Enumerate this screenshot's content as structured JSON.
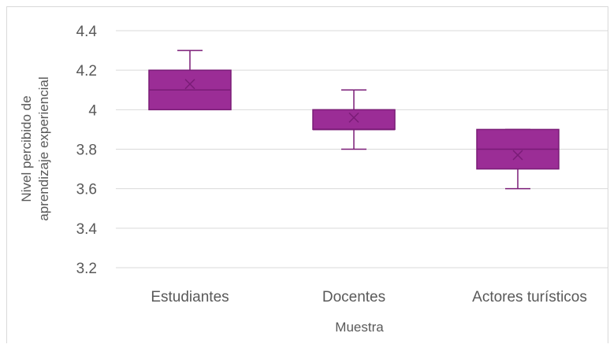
{
  "chart_data": {
    "type": "box",
    "categories": [
      "Estudiantes",
      "Docentes",
      "Actores turísticos"
    ],
    "boxes": [
      {
        "category": "Estudiantes",
        "min": 4.0,
        "q1": 4.0,
        "median": 4.1,
        "q3": 4.2,
        "max": 4.3,
        "mean": 4.13
      },
      {
        "category": "Docentes",
        "min": 3.8,
        "q1": 3.9,
        "median": 3.9,
        "q3": 4.0,
        "max": 4.1,
        "mean": 3.96
      },
      {
        "category": "Actores turísticos",
        "min": 3.6,
        "q1": 3.7,
        "median": 3.8,
        "q3": 3.9,
        "max": 3.9,
        "mean": 3.77
      }
    ],
    "yticks": [
      "3.2",
      "3.4",
      "3.6",
      "3.8",
      "4",
      "4.2",
      "4.4"
    ],
    "ylim": [
      3.2,
      4.4
    ],
    "ylabel_line1": "Nivel percibido de",
    "ylabel_line2": "aprendizaje experiencial",
    "xlabel": "Muestra",
    "grid": true,
    "legend": "none",
    "colors": {
      "box_fill": "#9B2D96",
      "box_stroke": "#7A1C77",
      "grid": "#d9d9d9",
      "axis_text": "#595959"
    }
  }
}
